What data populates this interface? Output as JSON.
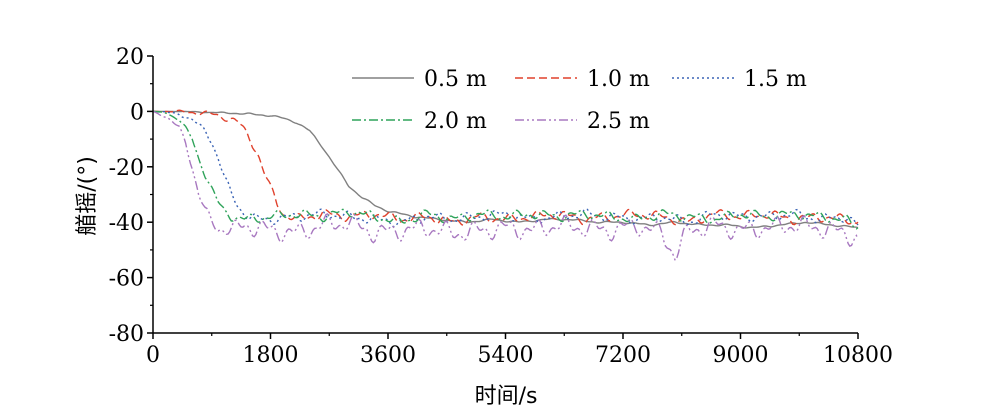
{
  "chart_data": {
    "type": "line",
    "title": "",
    "xlabel": "时间/s",
    "ylabel": "艏摇/(°)",
    "xlim": [
      0,
      10800
    ],
    "ylim": [
      -80,
      20
    ],
    "xticks": [
      0,
      1800,
      3600,
      5400,
      7200,
      9000,
      10800
    ],
    "yticks": [
      20,
      0,
      -20,
      -40,
      -60,
      -80
    ],
    "xtick_labels": [
      "0",
      "1800",
      "3600",
      "5400",
      "7200",
      "9000",
      "10800"
    ],
    "ytick_labels": [
      "20",
      "0",
      "-20",
      "-40",
      "-60",
      "-80"
    ],
    "grid": false,
    "legend_position": "top-right",
    "series": [
      {
        "name": "0.5 m",
        "color": "#808080",
        "dash": "solid",
        "x": [
          0,
          400,
          800,
          1200,
          1500,
          1800,
          2000,
          2200,
          2400,
          2600,
          2800,
          3000,
          3200,
          3400,
          3600,
          4000,
          4400,
          4800,
          5200,
          5600,
          6000,
          6400,
          6800,
          7200,
          7600,
          8000,
          8400,
          8800,
          9200,
          9600,
          10000,
          10400,
          10800
        ],
        "y": [
          0,
          0,
          -0.3,
          -0.6,
          -1,
          -1.5,
          -2.5,
          -4,
          -7,
          -13,
          -20,
          -27,
          -31,
          -34,
          -36,
          -38,
          -39,
          -40,
          -39,
          -40,
          -39,
          -39,
          -40,
          -40,
          -41,
          -40,
          -41,
          -41,
          -42,
          -41,
          -40,
          -41,
          -42
        ]
      },
      {
        "name": "1.0 m",
        "color": "#e0412c",
        "dash": "dashed",
        "x": [
          0,
          300,
          600,
          900,
          1100,
          1300,
          1500,
          1600,
          1700,
          1800,
          1900,
          2000,
          2200,
          2600,
          3000,
          3400,
          3800,
          4200,
          4600,
          5000,
          5400,
          5800,
          6200,
          6600,
          7000,
          7400,
          7800,
          8200,
          8600,
          9000,
          9400,
          9800,
          10200,
          10600,
          10800
        ],
        "y": [
          0,
          0,
          -0.3,
          -1,
          -2,
          -4,
          -10,
          -15,
          -22,
          -28,
          -33,
          -37,
          -39,
          -37,
          -38,
          -37,
          -39,
          -38,
          -40,
          -38,
          -39,
          -38,
          -37,
          -39,
          -38,
          -37,
          -38,
          -40,
          -37,
          -38,
          -37,
          -39,
          -38,
          -39,
          -40
        ]
      },
      {
        "name": "1.5 m",
        "color": "#3a63b5",
        "dash": "dotted",
        "x": [
          0,
          200,
          400,
          600,
          800,
          900,
          1000,
          1100,
          1200,
          1300,
          1400,
          1600,
          1800,
          2200,
          2600,
          3000,
          3400,
          3800,
          4200,
          4600,
          5000,
          5400,
          5800,
          6200,
          6600,
          7000,
          7400,
          7800,
          8200,
          8600,
          9000,
          9400,
          9800,
          10200,
          10600,
          10800
        ],
        "y": [
          0,
          -0.3,
          -1,
          -3,
          -7,
          -11,
          -17,
          -24,
          -30,
          -34,
          -37,
          -39,
          -39,
          -38,
          -37,
          -38,
          -39,
          -40,
          -38,
          -39,
          -38,
          -37,
          -39,
          -38,
          -37,
          -38,
          -39,
          -38,
          -40,
          -37,
          -38,
          -38,
          -37,
          -39,
          -38,
          -41
        ]
      },
      {
        "name": "2.0 m",
        "color": "#2fa35a",
        "dash": "dashdot",
        "x": [
          0,
          200,
          400,
          500,
          600,
          700,
          800,
          900,
          1000,
          1100,
          1200,
          1400,
          1800,
          2200,
          2600,
          3000,
          3400,
          3800,
          4200,
          4600,
          5000,
          5400,
          5800,
          6200,
          6600,
          7000,
          7400,
          7800,
          8200,
          8600,
          9000,
          9400,
          9800,
          10200,
          10600,
          10800
        ],
        "y": [
          0,
          -0.5,
          -3,
          -6,
          -10,
          -17,
          -23,
          -28,
          -33,
          -36,
          -38,
          -39,
          -38,
          -37,
          -38,
          -36,
          -38,
          -40,
          -37,
          -39,
          -37,
          -38,
          -37,
          -38,
          -37,
          -38,
          -39,
          -37,
          -38,
          -39,
          -37,
          -38,
          -37,
          -38,
          -39,
          -42
        ]
      },
      {
        "name": "2.5 m",
        "color": "#a878c0",
        "dash": "dashdotdot",
        "x": [
          0,
          200,
          400,
          500,
          600,
          700,
          800,
          900,
          1000,
          1200,
          1400,
          1800,
          2200,
          2600,
          3000,
          3400,
          3800,
          4200,
          4600,
          5000,
          5400,
          5800,
          6200,
          6600,
          7000,
          7400,
          7800,
          8000,
          8200,
          8600,
          9000,
          9400,
          9800,
          10200,
          10600,
          10800
        ],
        "y": [
          0,
          -2,
          -6,
          -11,
          -20,
          -30,
          -36,
          -40,
          -42,
          -43,
          -41,
          -43,
          -44,
          -41,
          -40,
          -44,
          -43,
          -42,
          -44,
          -43,
          -42,
          -43,
          -41,
          -42,
          -43,
          -41,
          -44,
          -52,
          -43,
          -41,
          -43,
          -42,
          -41,
          -42,
          -44,
          -46
        ]
      }
    ]
  }
}
